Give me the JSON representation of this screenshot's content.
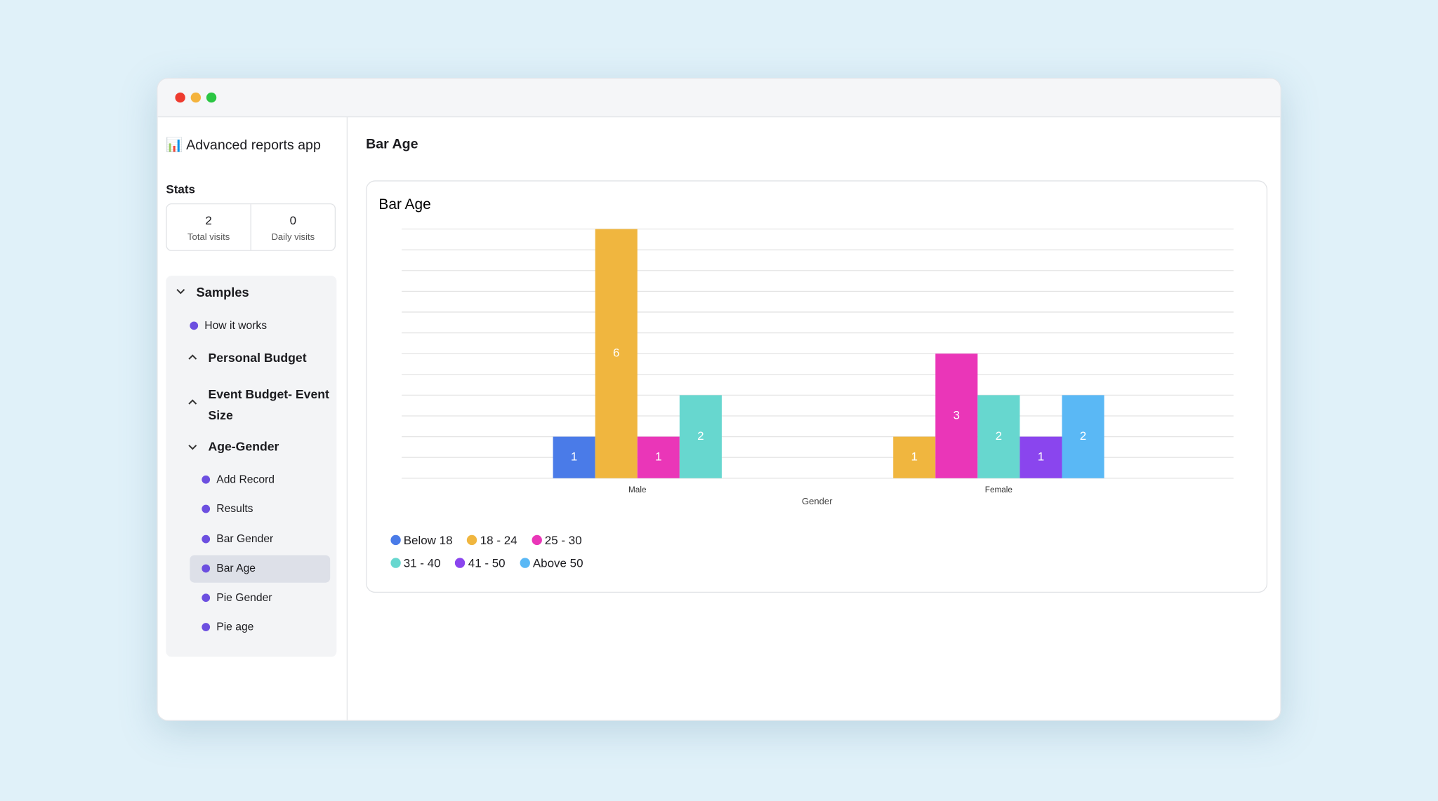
{
  "app": {
    "title": "📊 Advanced reports app",
    "page_title": "Bar Age"
  },
  "stats": {
    "heading": "Stats",
    "items": [
      {
        "value": "2",
        "label": "Total visits"
      },
      {
        "value": "0",
        "label": "Daily visits"
      }
    ]
  },
  "nav": {
    "groups": [
      "Samples",
      "How it works",
      "Personal Budget",
      "Event Budget- Event Size",
      "Age-Gender",
      "Add Record",
      "Results",
      "Bar Gender",
      "Bar Age",
      "Pie Gender",
      "Pie age"
    ]
  },
  "chart_data": {
    "type": "grouped_bar",
    "title": "Bar Age",
    "x_label": "Gender",
    "categories": [
      "Male",
      "Female"
    ],
    "series": [
      {
        "name": "Below 18",
        "color": "#4a7be8",
        "values": [
          1,
          null
        ]
      },
      {
        "name": "18 - 24",
        "color": "#f0b63f",
        "values": [
          6,
          1
        ]
      },
      {
        "name": "25 - 30",
        "color": "#ea36b8",
        "values": [
          1,
          3
        ]
      },
      {
        "name": "31 - 40",
        "color": "#67d7cf",
        "values": [
          2,
          2
        ]
      },
      {
        "name": "41 - 50",
        "color": "#8a45ee",
        "values": [
          null,
          1
        ]
      },
      {
        "name": "Above 50",
        "color": "#5ab8f5",
        "values": [
          null,
          2
        ]
      }
    ],
    "ylim": [
      0,
      6
    ],
    "yticks": [
      0,
      0.5,
      1,
      1.5,
      2,
      2.5,
      3,
      3.5,
      4,
      4.5,
      5,
      5.5,
      6
    ],
    "ytick_labels": false,
    "grid": true,
    "data_labels": true
  }
}
